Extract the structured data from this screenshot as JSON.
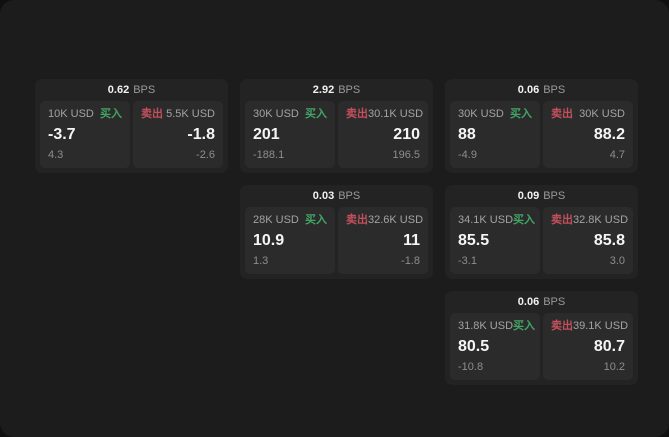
{
  "labels": {
    "unit": "BPS",
    "buy": "买入",
    "sell": "卖出"
  },
  "colors": {
    "window_bg": "#1c1c1c",
    "card_bg": "#232323",
    "panel_bg": "#2b2b2b",
    "buy_green": "#43a466",
    "sell_red": "#c2505c",
    "value_white": "#f5f5f5",
    "muted_gray": "#9a9a9a"
  },
  "cards": [
    {
      "row": 1,
      "col": 1,
      "bps": "0.62",
      "buy": {
        "size": "10K USD",
        "price": "-3.7",
        "delta": "4.3"
      },
      "sell": {
        "size": "5.5K USD",
        "price": "-1.8",
        "delta": "-2.6"
      }
    },
    {
      "row": 1,
      "col": 2,
      "bps": "2.92",
      "buy": {
        "size": "30K USD",
        "price": "201",
        "delta": "-188.1"
      },
      "sell": {
        "size": "30.1K USD",
        "price": "210",
        "delta": "196.5"
      }
    },
    {
      "row": 1,
      "col": 3,
      "bps": "0.06",
      "buy": {
        "size": "30K USD",
        "price": "88",
        "delta": "-4.9"
      },
      "sell": {
        "size": "30K USD",
        "price": "88.2",
        "delta": "4.7"
      }
    },
    {
      "row": 2,
      "col": 2,
      "bps": "0.03",
      "buy": {
        "size": "28K USD",
        "price": "10.9",
        "delta": "1.3"
      },
      "sell": {
        "size": "32.6K USD",
        "price": "11",
        "delta": "-1.8"
      }
    },
    {
      "row": 2,
      "col": 3,
      "bps": "0.09",
      "buy": {
        "size": "34.1K USD",
        "price": "85.5",
        "delta": "-3.1"
      },
      "sell": {
        "size": "32.8K USD",
        "price": "85.8",
        "delta": "3.0"
      }
    },
    {
      "row": 3,
      "col": 3,
      "bps": "0.06",
      "buy": {
        "size": "31.8K USD",
        "price": "80.5",
        "delta": "-10.8"
      },
      "sell": {
        "size": "39.1K USD",
        "price": "80.7",
        "delta": "10.2"
      }
    }
  ]
}
